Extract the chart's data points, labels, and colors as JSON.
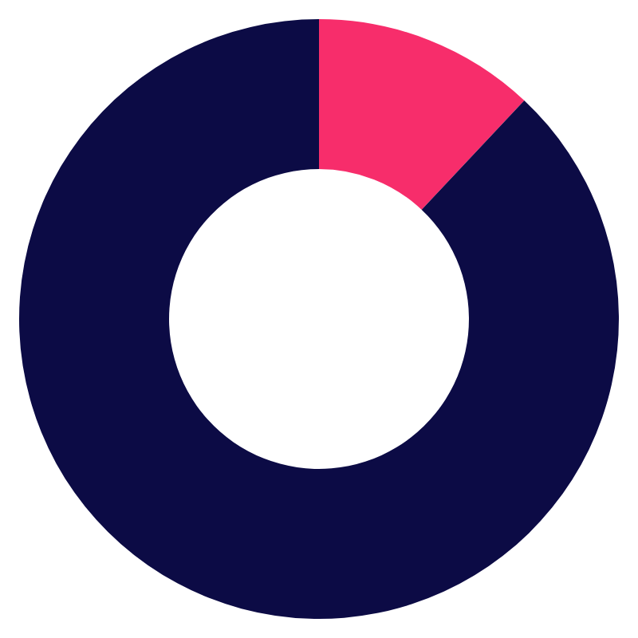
{
  "chart_data": {
    "type": "donut",
    "categories": [
      null,
      null
    ],
    "values": [
      12,
      88
    ],
    "colors": [
      "#f72d6b",
      "#0c0b45"
    ]
  }
}
